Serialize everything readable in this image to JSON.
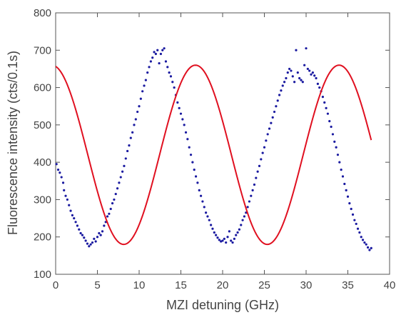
{
  "chart_data": {
    "type": "scatter",
    "title": "",
    "xlabel": "MZI detuning (GHz)",
    "ylabel": "Fluorescence intensity (cts/0.1s)",
    "xlim": [
      0,
      40
    ],
    "ylim": [
      100,
      800
    ],
    "xticks": [
      0,
      5,
      10,
      15,
      20,
      25,
      30,
      35,
      40
    ],
    "yticks": [
      100,
      200,
      300,
      400,
      500,
      600,
      700,
      800
    ],
    "grid": false,
    "legend": "none",
    "colors": {
      "points": "#1a1aa0",
      "fit": "#e01020",
      "axes": "#444444"
    },
    "series": [
      {
        "kind": "scatter",
        "points": [
          [
            0.1,
            395
          ],
          [
            0.3,
            380
          ],
          [
            0.5,
            372
          ],
          [
            0.7,
            360
          ],
          [
            0.9,
            345
          ],
          [
            1.0,
            325
          ],
          [
            1.2,
            310
          ],
          [
            1.4,
            300
          ],
          [
            1.6,
            285
          ],
          [
            1.8,
            270
          ],
          [
            2.0,
            258
          ],
          [
            2.2,
            250
          ],
          [
            2.4,
            240
          ],
          [
            2.6,
            230
          ],
          [
            2.8,
            220
          ],
          [
            3.0,
            210
          ],
          [
            3.2,
            205
          ],
          [
            3.4,
            198
          ],
          [
            3.6,
            190
          ],
          [
            3.8,
            182
          ],
          [
            4.0,
            175
          ],
          [
            4.2,
            180
          ],
          [
            4.4,
            185
          ],
          [
            4.6,
            195
          ],
          [
            4.8,
            188
          ],
          [
            5.0,
            200
          ],
          [
            5.2,
            210
          ],
          [
            5.4,
            205
          ],
          [
            5.6,
            215
          ],
          [
            5.8,
            230
          ],
          [
            6.0,
            240
          ],
          [
            6.2,
            255
          ],
          [
            6.4,
            262
          ],
          [
            6.6,
            275
          ],
          [
            6.8,
            290
          ],
          [
            7.0,
            300
          ],
          [
            7.2,
            315
          ],
          [
            7.4,
            330
          ],
          [
            7.6,
            345
          ],
          [
            7.8,
            360
          ],
          [
            8.0,
            375
          ],
          [
            8.2,
            390
          ],
          [
            8.4,
            410
          ],
          [
            8.6,
            430
          ],
          [
            8.8,
            445
          ],
          [
            9.0,
            465
          ],
          [
            9.2,
            480
          ],
          [
            9.4,
            500
          ],
          [
            9.6,
            515
          ],
          [
            9.8,
            535
          ],
          [
            10.0,
            550
          ],
          [
            10.2,
            570
          ],
          [
            10.4,
            590
          ],
          [
            10.6,
            605
          ],
          [
            10.8,
            620
          ],
          [
            11.0,
            640
          ],
          [
            11.2,
            655
          ],
          [
            11.4,
            670
          ],
          [
            11.6,
            680
          ],
          [
            11.8,
            695
          ],
          [
            12.0,
            690
          ],
          [
            12.2,
            700
          ],
          [
            12.4,
            665
          ],
          [
            12.6,
            690
          ],
          [
            12.8,
            700
          ],
          [
            13.0,
            705
          ],
          [
            13.2,
            670
          ],
          [
            13.4,
            655
          ],
          [
            13.6,
            640
          ],
          [
            13.8,
            630
          ],
          [
            14.0,
            615
          ],
          [
            14.2,
            600
          ],
          [
            14.4,
            580
          ],
          [
            14.6,
            560
          ],
          [
            14.8,
            545
          ],
          [
            15.0,
            530
          ],
          [
            15.2,
            515
          ],
          [
            15.4,
            500
          ],
          [
            15.6,
            480
          ],
          [
            15.8,
            462
          ],
          [
            16.0,
            440
          ],
          [
            16.2,
            420
          ],
          [
            16.4,
            400
          ],
          [
            16.6,
            380
          ],
          [
            16.8,
            362
          ],
          [
            17.0,
            345
          ],
          [
            17.2,
            325
          ],
          [
            17.4,
            310
          ],
          [
            17.6,
            295
          ],
          [
            17.8,
            280
          ],
          [
            18.0,
            265
          ],
          [
            18.2,
            255
          ],
          [
            18.4,
            245
          ],
          [
            18.6,
            232
          ],
          [
            18.8,
            222
          ],
          [
            19.0,
            212
          ],
          [
            19.2,
            205
          ],
          [
            19.4,
            198
          ],
          [
            19.6,
            192
          ],
          [
            19.8,
            188
          ],
          [
            20.0,
            190
          ],
          [
            20.2,
            195
          ],
          [
            20.4,
            185
          ],
          [
            20.6,
            200
          ],
          [
            20.8,
            215
          ],
          [
            21.0,
            190
          ],
          [
            21.2,
            185
          ],
          [
            21.4,
            195
          ],
          [
            21.6,
            205
          ],
          [
            21.8,
            212
          ],
          [
            22.0,
            220
          ],
          [
            22.2,
            232
          ],
          [
            22.4,
            245
          ],
          [
            22.6,
            255
          ],
          [
            22.8,
            265
          ],
          [
            23.0,
            280
          ],
          [
            23.2,
            295
          ],
          [
            23.4,
            310
          ],
          [
            23.6,
            325
          ],
          [
            23.8,
            340
          ],
          [
            24.0,
            358
          ],
          [
            24.2,
            375
          ],
          [
            24.4,
            390
          ],
          [
            24.6,
            408
          ],
          [
            24.8,
            425
          ],
          [
            25.0,
            440
          ],
          [
            25.2,
            458
          ],
          [
            25.4,
            475
          ],
          [
            25.6,
            490
          ],
          [
            25.8,
            505
          ],
          [
            26.0,
            520
          ],
          [
            26.2,
            535
          ],
          [
            26.4,
            550
          ],
          [
            26.6,
            565
          ],
          [
            26.8,
            580
          ],
          [
            27.0,
            592
          ],
          [
            27.2,
            605
          ],
          [
            27.4,
            615
          ],
          [
            27.6,
            625
          ],
          [
            27.8,
            640
          ],
          [
            28.0,
            650
          ],
          [
            28.2,
            645
          ],
          [
            28.4,
            630
          ],
          [
            28.6,
            615
          ],
          [
            28.8,
            700
          ],
          [
            29.0,
            640
          ],
          [
            29.2,
            625
          ],
          [
            29.4,
            620
          ],
          [
            29.6,
            615
          ],
          [
            29.8,
            660
          ],
          [
            30.0,
            705
          ],
          [
            30.2,
            650
          ],
          [
            30.4,
            645
          ],
          [
            30.6,
            635
          ],
          [
            30.8,
            640
          ],
          [
            31.0,
            632
          ],
          [
            31.2,
            625
          ],
          [
            31.4,
            610
          ],
          [
            31.6,
            600
          ],
          [
            31.8,
            590
          ],
          [
            32.0,
            575
          ],
          [
            32.2,
            560
          ],
          [
            32.4,
            545
          ],
          [
            32.6,
            530
          ],
          [
            32.8,
            510
          ],
          [
            33.0,
            495
          ],
          [
            33.2,
            475
          ],
          [
            33.4,
            455
          ],
          [
            33.6,
            440
          ],
          [
            33.8,
            420
          ],
          [
            34.0,
            400
          ],
          [
            34.2,
            380
          ],
          [
            34.4,
            362
          ],
          [
            34.6,
            342
          ],
          [
            34.8,
            325
          ],
          [
            35.0,
            308
          ],
          [
            35.2,
            290
          ],
          [
            35.4,
            275
          ],
          [
            35.6,
            260
          ],
          [
            35.8,
            245
          ],
          [
            36.0,
            235
          ],
          [
            36.2,
            222
          ],
          [
            36.4,
            212
          ],
          [
            36.6,
            200
          ],
          [
            36.8,
            192
          ],
          [
            37.0,
            185
          ],
          [
            37.2,
            180
          ],
          [
            37.4,
            172
          ],
          [
            37.6,
            165
          ],
          [
            37.8,
            170
          ]
        ]
      },
      {
        "kind": "line",
        "function": "y = 420 + 240*sin(2*pi*(x + 0.45)/17.2 + pi/2)",
        "xrange": [
          0,
          37.8
        ]
      }
    ]
  }
}
